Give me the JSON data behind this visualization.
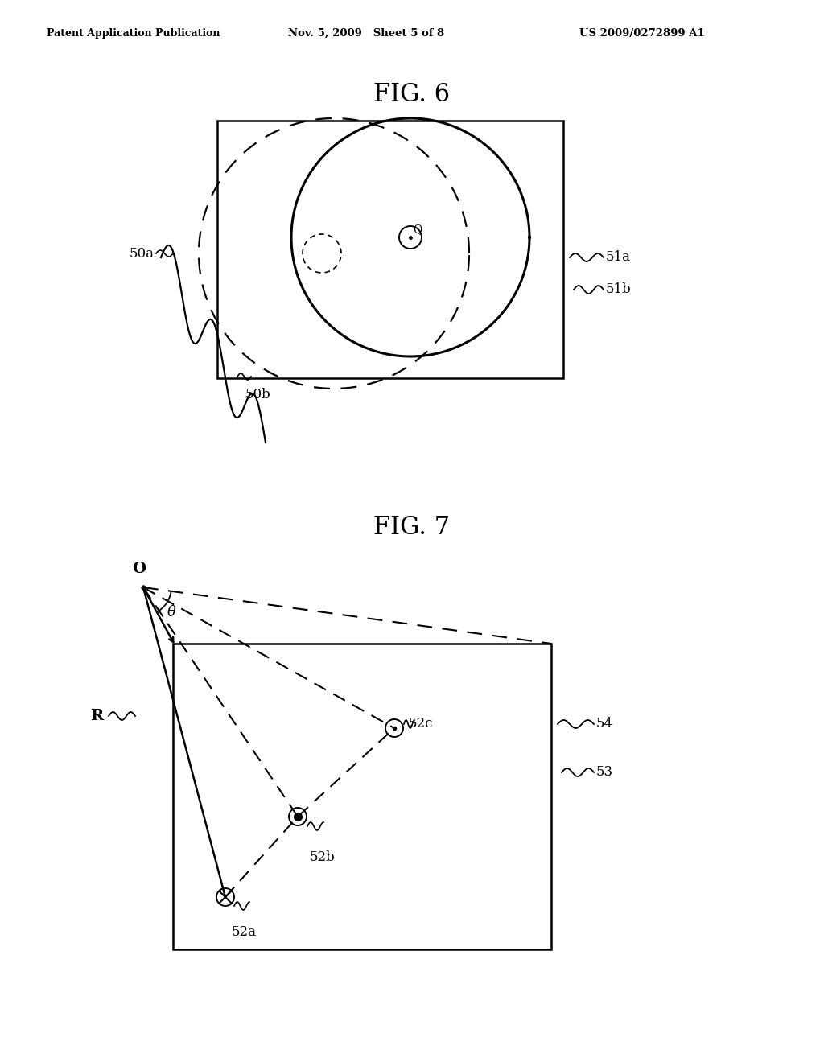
{
  "bg_color": "#ffffff",
  "header_left": "Patent Application Publication",
  "header_mid": "Nov. 5, 2009   Sheet 5 of 8",
  "header_right": "US 2009/0272899 A1",
  "fig6_title": "FIG. 6",
  "fig7_title": "FIG. 7",
  "label_50a": "50a",
  "label_50b": "50b",
  "label_51a": "51a",
  "label_51b": "51b",
  "label_O": "O",
  "label_R": "R",
  "label_theta": "θ",
  "label_52a": "52a",
  "label_52b": "52b",
  "label_52c": "52c",
  "label_53": "53",
  "label_54": "54",
  "label_Q": "Q"
}
